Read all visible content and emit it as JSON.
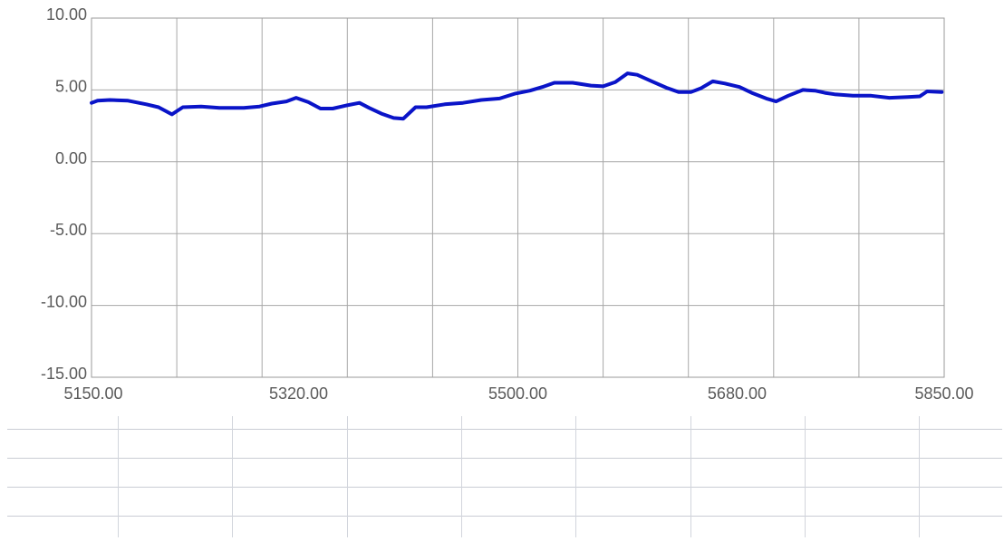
{
  "chart_data": {
    "type": "line",
    "title": "",
    "xlabel": "",
    "ylabel": "",
    "xlim": [
      5150,
      5850
    ],
    "ylim": [
      -15,
      10
    ],
    "x_ticks": [
      "5150.00",
      "5320.00",
      "5500.00",
      "5680.00",
      "5850.00"
    ],
    "y_ticks": [
      "10.00",
      "5.00",
      "0.00",
      "-5.00",
      "-10.00",
      "-15.00"
    ],
    "grid": true,
    "series": [
      {
        "color": "#0a14c8",
        "points": [
          [
            5150,
            4.1
          ],
          [
            5155,
            4.25
          ],
          [
            5165,
            4.3
          ],
          [
            5180,
            4.25
          ],
          [
            5195,
            4.0
          ],
          [
            5205,
            3.8
          ],
          [
            5216,
            3.3
          ],
          [
            5225,
            3.8
          ],
          [
            5240,
            3.85
          ],
          [
            5255,
            3.75
          ],
          [
            5275,
            3.75
          ],
          [
            5288,
            3.85
          ],
          [
            5298,
            4.05
          ],
          [
            5310,
            4.2
          ],
          [
            5318,
            4.45
          ],
          [
            5328,
            4.15
          ],
          [
            5338,
            3.7
          ],
          [
            5348,
            3.7
          ],
          [
            5358,
            3.9
          ],
          [
            5370,
            4.1
          ],
          [
            5378,
            3.75
          ],
          [
            5388,
            3.35
          ],
          [
            5398,
            3.05
          ],
          [
            5406,
            3.0
          ],
          [
            5416,
            3.8
          ],
          [
            5425,
            3.8
          ],
          [
            5440,
            4.0
          ],
          [
            5455,
            4.1
          ],
          [
            5470,
            4.3
          ],
          [
            5485,
            4.4
          ],
          [
            5498,
            4.75
          ],
          [
            5510,
            4.95
          ],
          [
            5520,
            5.2
          ],
          [
            5530,
            5.5
          ],
          [
            5545,
            5.5
          ],
          [
            5560,
            5.3
          ],
          [
            5570,
            5.25
          ],
          [
            5580,
            5.55
          ],
          [
            5590,
            6.15
          ],
          [
            5598,
            6.05
          ],
          [
            5610,
            5.6
          ],
          [
            5622,
            5.15
          ],
          [
            5632,
            4.85
          ],
          [
            5642,
            4.85
          ],
          [
            5650,
            5.1
          ],
          [
            5660,
            5.6
          ],
          [
            5670,
            5.45
          ],
          [
            5682,
            5.2
          ],
          [
            5692,
            4.8
          ],
          [
            5704,
            4.4
          ],
          [
            5712,
            4.2
          ],
          [
            5722,
            4.6
          ],
          [
            5734,
            5.0
          ],
          [
            5744,
            4.95
          ],
          [
            5752,
            4.8
          ],
          [
            5760,
            4.7
          ],
          [
            5775,
            4.6
          ],
          [
            5790,
            4.6
          ],
          [
            5805,
            4.45
          ],
          [
            5820,
            4.5
          ],
          [
            5830,
            4.55
          ],
          [
            5836,
            4.9
          ],
          [
            5848,
            4.85
          ]
        ]
      }
    ]
  },
  "lower_grid": {
    "columns": 8,
    "rows": 4
  }
}
